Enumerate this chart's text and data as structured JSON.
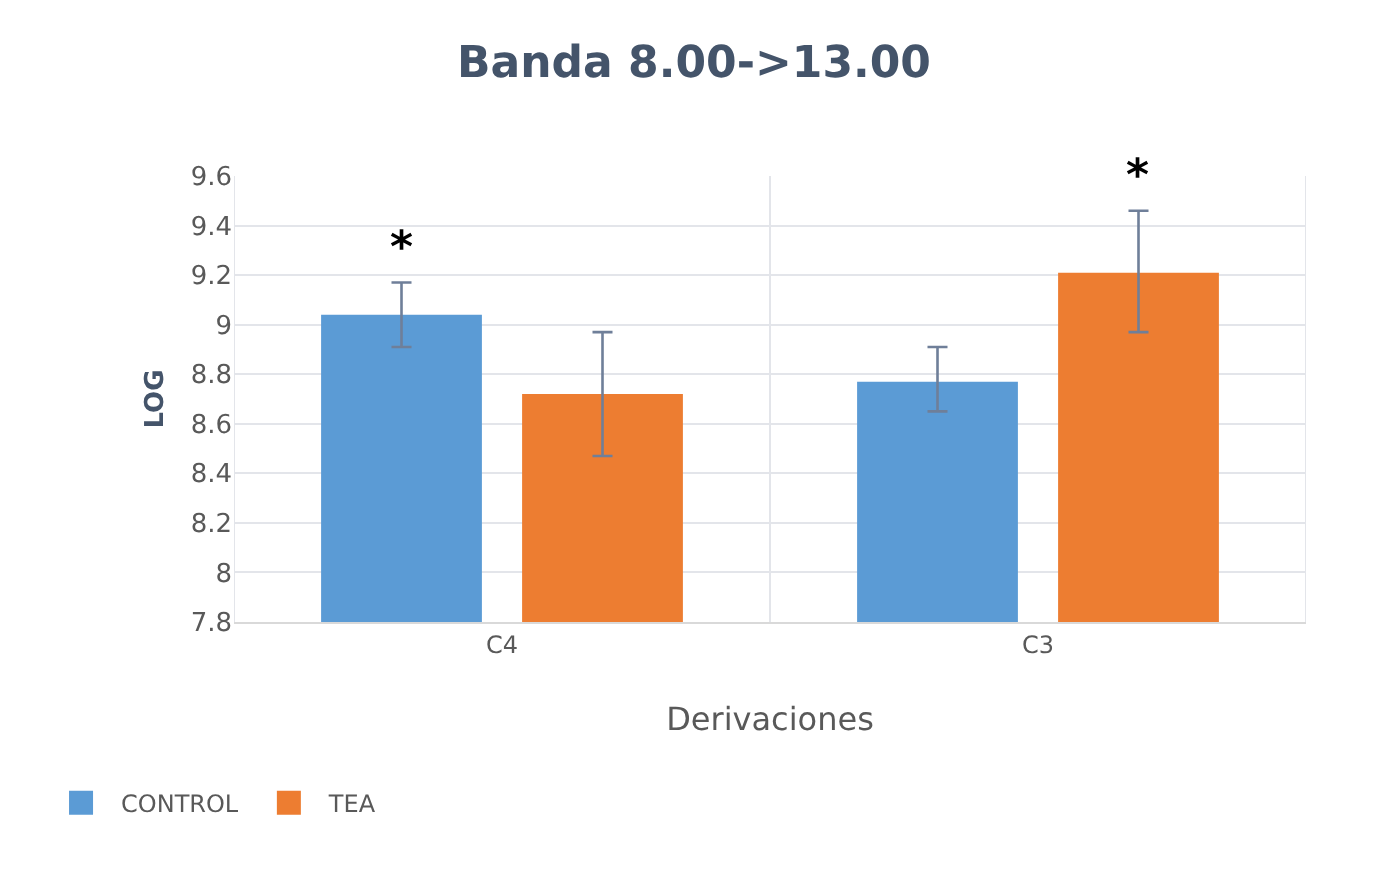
{
  "chart_data": {
    "type": "bar",
    "title": "Banda 8.00->13.00",
    "xlabel": "Derivaciones",
    "ylabel": "LOG",
    "categories": [
      "C4",
      "C3"
    ],
    "series": [
      {
        "name": "CONTROL",
        "color": "#5b9bd5",
        "values": [
          9.04,
          8.77
        ],
        "errors": [
          [
            8.91,
            9.17
          ],
          [
            8.65,
            8.91
          ]
        ]
      },
      {
        "name": "TEA",
        "color": "#ed7d31",
        "values": [
          8.72,
          9.21
        ],
        "errors": [
          [
            8.47,
            8.97
          ],
          [
            8.97,
            9.46
          ]
        ]
      }
    ],
    "annotations": [
      "*",
      "*"
    ],
    "ylim": [
      7.8,
      9.6
    ],
    "yticks": [
      7.8,
      8,
      8.2,
      8.4,
      8.6,
      8.8,
      9,
      9.2,
      9.4,
      9.6
    ],
    "grid": true,
    "legend": "bottom left"
  }
}
